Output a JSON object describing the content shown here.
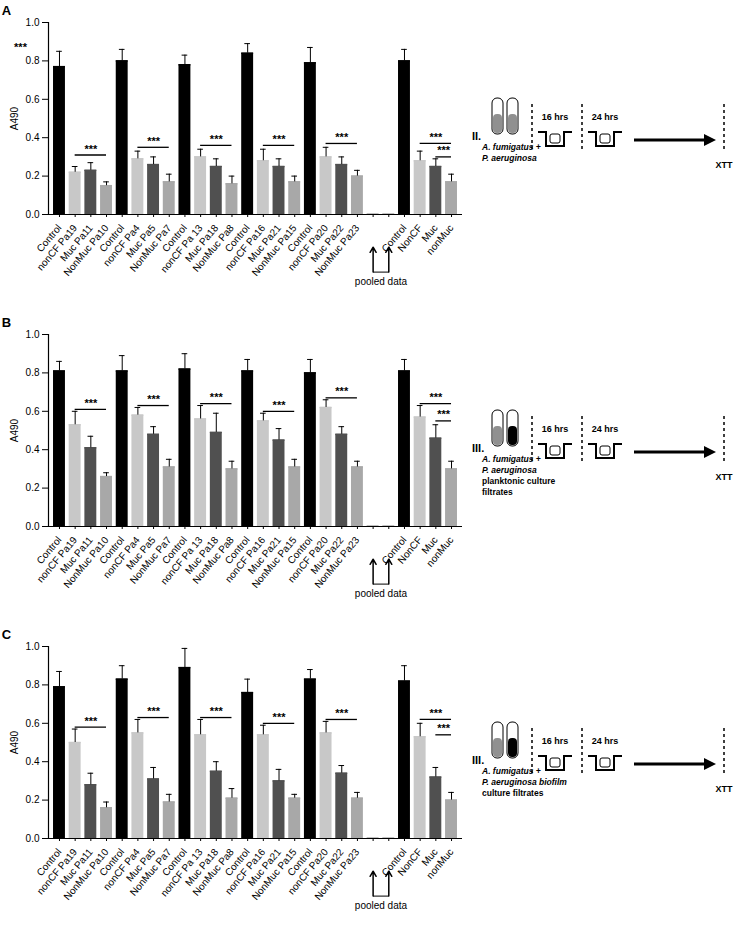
{
  "chart_data": [
    {
      "type": "bar",
      "panel": "A",
      "categories": [
        "Control",
        "nonCF Pa19",
        "Muc Pa11",
        "NonMuc Pa10",
        "Control",
        "nonCF Pa4",
        "Muc Pa5",
        "NonMuc Pa7",
        "Control",
        "nonCF Pa 13",
        "Muc Pa18",
        "NonMuc Pa8",
        "Control",
        "nonCF Pa16",
        "Muc Pa21",
        "NonMuc Pa15",
        "Control",
        "nonCF Pa20",
        "Muc Pa22",
        "NonMuc Pa23",
        null,
        null,
        "Control",
        "NonCF",
        "Muc",
        "nonMuc"
      ],
      "values": [
        0.77,
        0.22,
        0.23,
        0.15,
        0.8,
        0.29,
        0.26,
        0.17,
        0.78,
        0.3,
        0.25,
        0.16,
        0.84,
        0.28,
        0.25,
        0.17,
        0.79,
        0.3,
        0.26,
        0.2,
        0,
        0,
        0.8,
        0.28,
        0.25,
        0.17
      ],
      "errors": [
        0.08,
        0.03,
        0.04,
        0.02,
        0.06,
        0.04,
        0.04,
        0.04,
        0.05,
        0.04,
        0.04,
        0.04,
        0.05,
        0.06,
        0.04,
        0.03,
        0.08,
        0.05,
        0.04,
        0.03,
        0,
        0,
        0.06,
        0.05,
        0.04,
        0.04
      ],
      "colors": [
        "#000000",
        "#c8c8c8",
        "#505050",
        "#a8a8a8",
        "#000000",
        "#c8c8c8",
        "#505050",
        "#a8a8a8",
        "#000000",
        "#c8c8c8",
        "#505050",
        "#a8a8a8",
        "#000000",
        "#c8c8c8",
        "#505050",
        "#a8a8a8",
        "#000000",
        "#c8c8c8",
        "#505050",
        "#a8a8a8",
        "#000000",
        "#000000",
        "#000000",
        "#c8c8c8",
        "#505050",
        "#a8a8a8"
      ],
      "ylabel": "A490",
      "ylim": [
        0,
        1.0
      ],
      "yticks": [
        {
          "value": 0,
          "label": "0.0"
        },
        0.2,
        0.4,
        0.6,
        0.8,
        {
          "value": 1.0,
          "label": "1.0"
        }
      ],
      "annotations": [
        {
          "text": "***",
          "y": 0.87
        },
        {
          "text": "***",
          "from": 1,
          "to": 3,
          "y": 0.31
        },
        {
          "text": "***",
          "from": 5,
          "to": 7,
          "y": 0.35
        },
        {
          "text": "***",
          "from": 9,
          "to": 11,
          "y": 0.36
        },
        {
          "text": "***",
          "from": 13,
          "to": 15,
          "y": 0.36
        },
        {
          "text": "***",
          "from": 17,
          "to": 19,
          "y": 0.37
        },
        {
          "text": "***",
          "from": 23,
          "to": 25,
          "y": 0.37
        },
        {
          "text": "***",
          "from": 24,
          "to": 25,
          "y": 0.3
        }
      ],
      "pooled_label": "pooled data",
      "schematic": {
        "numeral": "II.",
        "lines": [
          "A. fumigatus +",
          "P. aeruginosa"
        ],
        "tube_colors": [
          "#909090",
          "#909090"
        ],
        "steps": [
          "16 hrs",
          "24 hrs"
        ],
        "readout": "XTT"
      }
    },
    {
      "type": "bar",
      "panel": "B",
      "categories": [
        "Control",
        "nonCF Pa19",
        "Muc Pa11",
        "NonMuc Pa10",
        "Control",
        "nonCF Pa4",
        "Muc Pa5",
        "NonMuc Pa7",
        "Control",
        "nonCF Pa 13",
        "Muc Pa18",
        "NonMuc Pa8",
        "Control",
        "nonCF Pa16",
        "Muc Pa21",
        "NonMuc Pa15",
        "Control",
        "nonCF Pa20",
        "Muc Pa22",
        "NonMuc Pa23",
        null,
        null,
        "Control",
        "NonCF",
        "Muc",
        "nonMuc"
      ],
      "values": [
        0.81,
        0.53,
        0.41,
        0.26,
        0.81,
        0.58,
        0.48,
        0.31,
        0.82,
        0.56,
        0.49,
        0.3,
        0.81,
        0.55,
        0.45,
        0.31,
        0.8,
        0.62,
        0.48,
        0.31,
        0,
        0,
        0.81,
        0.57,
        0.46,
        0.3
      ],
      "errors": [
        0.05,
        0.07,
        0.06,
        0.02,
        0.08,
        0.04,
        0.04,
        0.04,
        0.08,
        0.07,
        0.1,
        0.04,
        0.06,
        0.04,
        0.06,
        0.04,
        0.07,
        0.04,
        0.04,
        0.03,
        0,
        0,
        0.06,
        0.06,
        0.07,
        0.04
      ],
      "colors": [
        "#000000",
        "#c8c8c8",
        "#505050",
        "#a8a8a8",
        "#000000",
        "#c8c8c8",
        "#505050",
        "#a8a8a8",
        "#000000",
        "#c8c8c8",
        "#505050",
        "#a8a8a8",
        "#000000",
        "#c8c8c8",
        "#505050",
        "#a8a8a8",
        "#000000",
        "#c8c8c8",
        "#505050",
        "#a8a8a8",
        "#000000",
        "#000000",
        "#000000",
        "#c8c8c8",
        "#505050",
        "#a8a8a8"
      ],
      "ylabel": "A490",
      "ylim": [
        0,
        1.0
      ],
      "yticks": [
        {
          "value": 0,
          "label": "0.0"
        },
        0.2,
        0.4,
        0.6,
        0.8,
        {
          "value": 1.0,
          "label": "1.0"
        }
      ],
      "annotations": [
        {
          "text": "***",
          "from": 1,
          "to": 3,
          "y": 0.61
        },
        {
          "text": "***",
          "from": 5,
          "to": 7,
          "y": 0.63
        },
        {
          "text": "***",
          "from": 9,
          "to": 11,
          "y": 0.64
        },
        {
          "text": "***",
          "from": 13,
          "to": 15,
          "y": 0.6
        },
        {
          "text": "***",
          "from": 17,
          "to": 19,
          "y": 0.67
        },
        {
          "text": "***",
          "from": 23,
          "to": 25,
          "y": 0.64
        },
        {
          "text": "***",
          "from": 24,
          "to": 25,
          "y": 0.55
        }
      ],
      "pooled_label": "pooled data",
      "schematic": {
        "numeral": "III.",
        "lines": [
          "A. fumigatus +",
          "P. aeruginosa",
          "planktonic culture",
          "filtrates"
        ],
        "tube_colors": [
          "#909090",
          "#000000"
        ],
        "steps": [
          "16 hrs",
          "24 hrs"
        ],
        "readout": "XTT"
      }
    },
    {
      "type": "bar",
      "panel": "C",
      "categories": [
        "Control",
        "nonCF Pa19",
        "Muc Pa11",
        "NonMuc Pa10",
        "Control",
        "nonCF Pa4",
        "Muc Pa5",
        "NonMuc Pa7",
        "Control",
        "nonCF Pa 13",
        "Muc Pa18",
        "NonMuc Pa8",
        "Control",
        "nonCF Pa16",
        "Muc Pa21",
        "NonMuc Pa15",
        "Control",
        "nonCF Pa20",
        "Muc Pa22",
        "NonMuc Pa23",
        null,
        null,
        "Control",
        "NonCF",
        "Muc",
        "nonMuc"
      ],
      "values": [
        0.79,
        0.5,
        0.28,
        0.16,
        0.83,
        0.55,
        0.31,
        0.19,
        0.89,
        0.54,
        0.35,
        0.21,
        0.76,
        0.54,
        0.3,
        0.21,
        0.83,
        0.55,
        0.34,
        0.21,
        0,
        0,
        0.82,
        0.53,
        0.32,
        0.2
      ],
      "errors": [
        0.08,
        0.07,
        0.06,
        0.03,
        0.07,
        0.07,
        0.06,
        0.04,
        0.1,
        0.08,
        0.05,
        0.05,
        0.07,
        0.05,
        0.06,
        0.02,
        0.05,
        0.06,
        0.04,
        0.03,
        0,
        0,
        0.08,
        0.07,
        0.05,
        0.04
      ],
      "colors": [
        "#000000",
        "#c8c8c8",
        "#505050",
        "#a8a8a8",
        "#000000",
        "#c8c8c8",
        "#505050",
        "#a8a8a8",
        "#000000",
        "#c8c8c8",
        "#505050",
        "#a8a8a8",
        "#000000",
        "#c8c8c8",
        "#505050",
        "#a8a8a8",
        "#000000",
        "#c8c8c8",
        "#505050",
        "#a8a8a8",
        "#000000",
        "#000000",
        "#000000",
        "#c8c8c8",
        "#505050",
        "#a8a8a8"
      ],
      "ylabel": "A490",
      "ylim": [
        0,
        1.0
      ],
      "yticks": [
        {
          "value": 0,
          "label": "0.0"
        },
        0.2,
        0.4,
        0.6,
        0.8,
        {
          "value": 1.0,
          "label": "1.0"
        }
      ],
      "annotations": [
        {
          "text": "***",
          "from": 1,
          "to": 3,
          "y": 0.58
        },
        {
          "text": "***",
          "from": 5,
          "to": 7,
          "y": 0.63
        },
        {
          "text": "***",
          "from": 9,
          "to": 11,
          "y": 0.63
        },
        {
          "text": "***",
          "from": 13,
          "to": 15,
          "y": 0.6
        },
        {
          "text": "***",
          "from": 17,
          "to": 19,
          "y": 0.62
        },
        {
          "text": "***",
          "from": 23,
          "to": 25,
          "y": 0.62
        },
        {
          "text": "***",
          "from": 24,
          "to": 25,
          "y": 0.54
        }
      ],
      "pooled_label": "pooled data",
      "schematic": {
        "numeral": "III.",
        "lines": [
          "A. fumigatus +",
          "P. aeruginosa biofilm",
          "culture filtrates"
        ],
        "tube_colors": [
          "#909090",
          "#000000"
        ],
        "steps": [
          "16 hrs",
          "24 hrs"
        ],
        "readout": "XTT"
      }
    }
  ]
}
